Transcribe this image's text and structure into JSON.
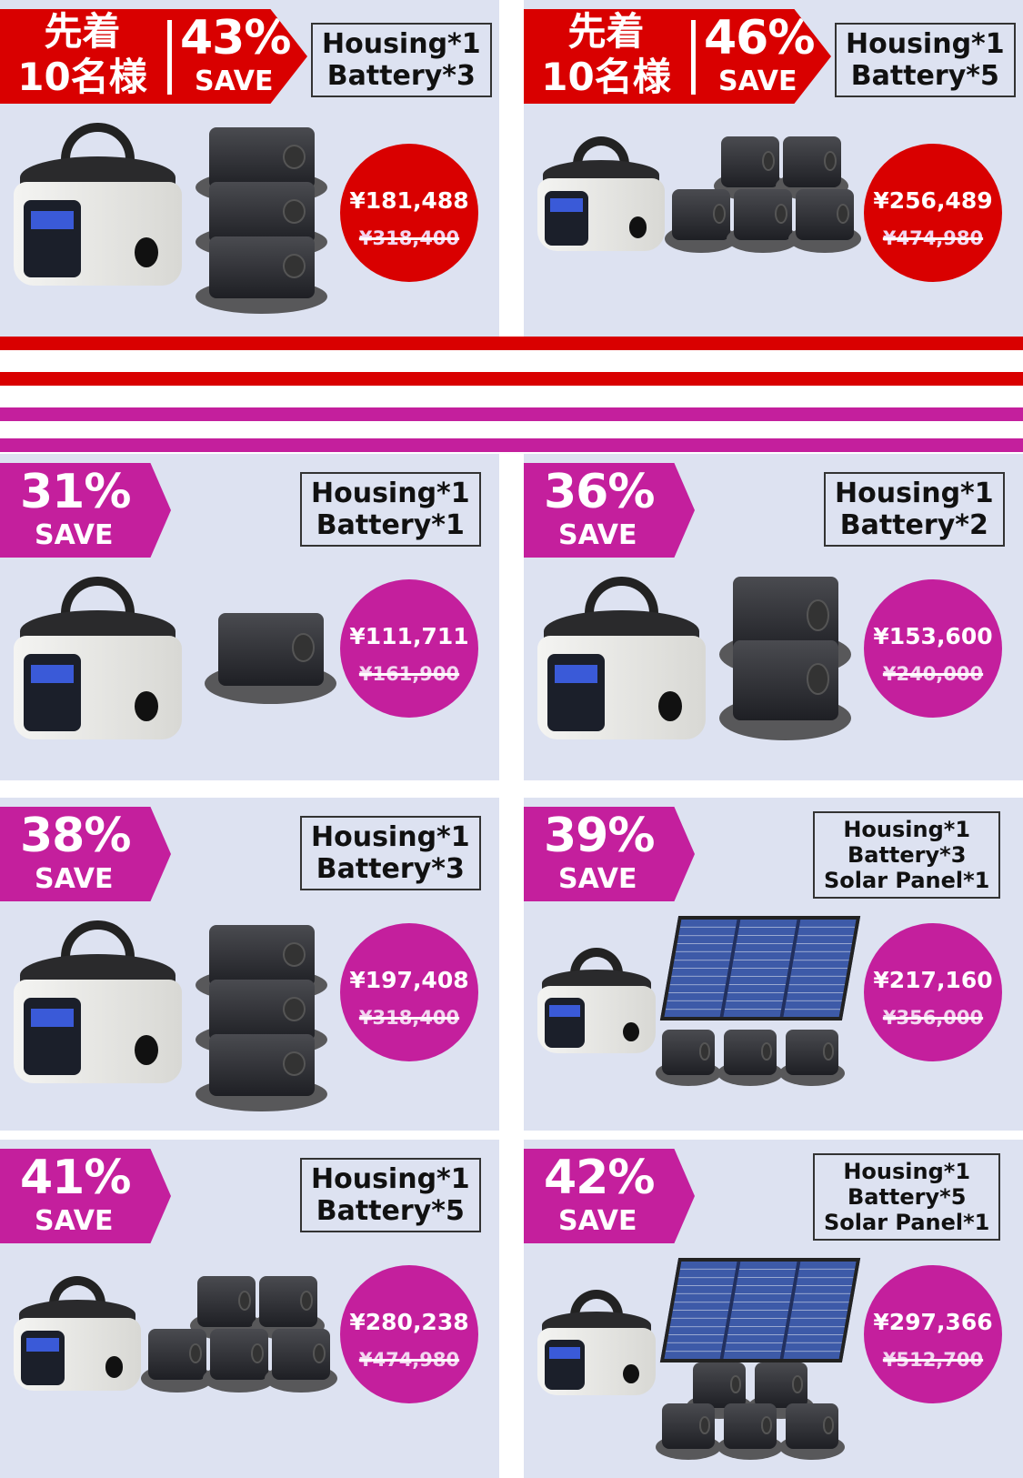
{
  "colors": {
    "red": "#d90000",
    "magenta": "#c41f9d",
    "panel_bg": "#dde2f1"
  },
  "featured": [
    {
      "badge_jp": "先着\n10名様",
      "percent": "43%",
      "save": "SAVE",
      "contents": [
        "Housing*1",
        "Battery*3"
      ],
      "price": "¥181,488",
      "original": "¥318,400",
      "batteries": 3,
      "solar": false
    },
    {
      "badge_jp": "先着\n10名様",
      "percent": "46%",
      "save": "SAVE",
      "contents": [
        "Housing*1",
        "Battery*5"
      ],
      "price": "¥256,489",
      "original": "¥474,980",
      "batteries": 5,
      "solar": false
    }
  ],
  "offers": [
    {
      "percent": "31%",
      "save": "SAVE",
      "contents": [
        "Housing*1",
        "Battery*1"
      ],
      "price": "¥111,711",
      "original": "¥161,900",
      "batteries": 1,
      "solar": false
    },
    {
      "percent": "36%",
      "save": "SAVE",
      "contents": [
        "Housing*1",
        "Battery*2"
      ],
      "price": "¥153,600",
      "original": "¥240,000",
      "batteries": 2,
      "solar": false
    },
    {
      "percent": "38%",
      "save": "SAVE",
      "contents": [
        "Housing*1",
        "Battery*3"
      ],
      "price": "¥197,408",
      "original": "¥318,400",
      "batteries": 3,
      "solar": false
    },
    {
      "percent": "39%",
      "save": "SAVE",
      "contents": [
        "Housing*1",
        "Battery*3",
        "Solar Panel*1"
      ],
      "price": "¥217,160",
      "original": "¥356,000",
      "batteries": 3,
      "solar": true
    },
    {
      "percent": "41%",
      "save": "SAVE",
      "contents": [
        "Housing*1",
        "Battery*5"
      ],
      "price": "¥280,238",
      "original": "¥474,980",
      "batteries": 5,
      "solar": false
    },
    {
      "percent": "42%",
      "save": "SAVE",
      "contents": [
        "Housing*1",
        "Battery*5",
        "Solar Panel*1"
      ],
      "price": "¥297,366",
      "original": "¥512,700",
      "batteries": 5,
      "solar": true
    }
  ]
}
